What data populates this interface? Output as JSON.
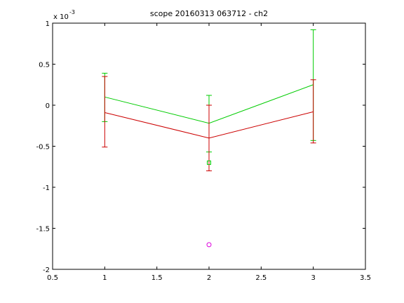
{
  "chart_data": {
    "type": "line",
    "title": "scope 20160313 063712 - ch2",
    "xlabel": "",
    "ylabel": "",
    "xlim": [
      0.5,
      3.5
    ],
    "ylim": [
      -0.002,
      0.001
    ],
    "xticks": [
      0.5,
      1,
      1.5,
      2,
      2.5,
      3,
      3.5
    ],
    "xtick_labels": [
      "0.5",
      "1",
      "1.5",
      "2",
      "2.5",
      "3",
      "3.5"
    ],
    "yticks": [
      -0.002,
      -0.0015,
      -0.001,
      -0.0005,
      0,
      0.0005,
      0.001
    ],
    "ytick_labels": [
      "-2",
      "-1.5",
      "-1",
      "-0.5",
      "0",
      "0.5",
      "1"
    ],
    "y_multiplier_label": "x 10",
    "y_multiplier_exponent": "-3",
    "grid": false,
    "series": [
      {
        "color": "#00cc00",
        "x": [
          1,
          2,
          3
        ],
        "y": [
          0.0001,
          -0.00022,
          0.00025
        ],
        "err_low": [
          -0.0002,
          -0.00057,
          -0.00043
        ],
        "err_high": [
          0.00039,
          0.00012,
          0.00092
        ]
      },
      {
        "color": "#cc0000",
        "x": [
          1,
          2,
          3
        ],
        "y": [
          -9e-05,
          -0.0004,
          -8e-05
        ],
        "err_low": [
          -0.00051,
          -0.0008,
          -0.00046
        ],
        "err_high": [
          0.00035,
          0.0,
          0.00031
        ]
      }
    ],
    "markers": [
      {
        "shape": "square",
        "color": "#00cc00",
        "x": 2,
        "y": -0.0007
      },
      {
        "shape": "circle",
        "color": "#dd00dd",
        "x": 2,
        "y": -0.0017
      }
    ]
  }
}
